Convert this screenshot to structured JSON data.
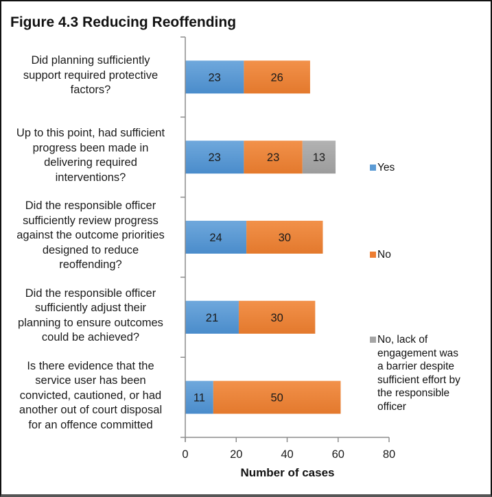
{
  "chart_data": {
    "type": "bar",
    "orientation": "horizontal",
    "stacked": true,
    "title": "Figure 4.3 Reducing Reoffending",
    "xlabel": "Number of cases",
    "ylabel": "",
    "xlim": [
      0,
      80
    ],
    "xticks": [
      0,
      20,
      40,
      60,
      80
    ],
    "grid": false,
    "legend_position": "right",
    "categories": [
      "Did planning sufficiently support required protective factors?",
      "Up to this point, had sufficient progress been made in delivering required interventions?",
      "Did the responsible officer sufficiently review progress against the outcome priorities designed to reduce reoffending?",
      "Did the responsible officer sufficiently adjust their planning to ensure outcomes could be achieved?",
      "Is there evidence that the service user has been convicted, cautioned, or had another out of court disposal for an offence committed"
    ],
    "category_lines": [
      [
        "Did planning sufficiently",
        "support required protective",
        "factors?"
      ],
      [
        "Up to this point, had sufficient",
        "progress been made in",
        "delivering required",
        "interventions?"
      ],
      [
        "Did the responsible officer",
        "sufficiently review progress",
        "against the outcome priorities",
        "designed to reduce",
        "reoffending?"
      ],
      [
        "Did the responsible officer",
        "sufficiently adjust their",
        "planning to ensure outcomes",
        "could be achieved?"
      ],
      [
        "Is there evidence that the",
        "service user has been",
        "convicted, cautioned, or had",
        "another out of court disposal",
        "for an offence committed"
      ]
    ],
    "series": [
      {
        "name": "Yes",
        "color": "#5b9bd5",
        "values": [
          23,
          23,
          24,
          21,
          11
        ]
      },
      {
        "name": "No",
        "color": "#ed7d31",
        "values": [
          26,
          23,
          30,
          30,
          50
        ]
      },
      {
        "name": "No, lack of engagement was a barrier despite sufficient effort by the responsible officer",
        "color": "#a5a5a5",
        "values": [
          null,
          13,
          null,
          null,
          null
        ]
      }
    ],
    "legend_lines": [
      [
        "Yes"
      ],
      [
        "No"
      ],
      [
        "No, lack of",
        "engagement was",
        "a barrier despite",
        "sufficient effort by",
        "the responsible",
        "officer"
      ]
    ]
  }
}
